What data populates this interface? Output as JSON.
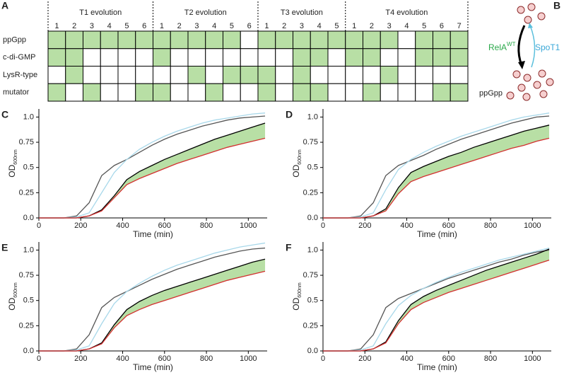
{
  "panel_a": {
    "label": "A",
    "groups": [
      {
        "label": "T1 evolution",
        "columns": [
          "1",
          "2",
          "3",
          "4",
          "5",
          "6"
        ]
      },
      {
        "label": "T2 evolution",
        "columns": [
          "1",
          "2",
          "3",
          "4",
          "5",
          "6"
        ]
      },
      {
        "label": "T3 evolution",
        "columns": [
          "1",
          "2",
          "3",
          "4",
          "5"
        ]
      },
      {
        "label": "T4 evolution",
        "columns": [
          "1",
          "2",
          "3",
          "4",
          "5",
          "6",
          "7"
        ]
      }
    ],
    "fill_color": "#b8dfa5",
    "rows": [
      {
        "label": "ppGpp",
        "cells": [
          true,
          true,
          true,
          true,
          true,
          true,
          true,
          true,
          true,
          true,
          true,
          false,
          true,
          true,
          true,
          true,
          true,
          true,
          true,
          true,
          false,
          true,
          true,
          true
        ]
      },
      {
        "label": "c-di-GMP",
        "cells": [
          true,
          true,
          false,
          false,
          false,
          false,
          true,
          false,
          false,
          false,
          false,
          false,
          false,
          false,
          true,
          true,
          false,
          true,
          true,
          false,
          false,
          true,
          true,
          true
        ]
      },
      {
        "label": "LysR-type",
        "cells": [
          false,
          true,
          false,
          false,
          false,
          false,
          false,
          false,
          true,
          false,
          true,
          true,
          true,
          false,
          true,
          false,
          false,
          false,
          false,
          true,
          false,
          false,
          false,
          false
        ]
      },
      {
        "label": "mutator",
        "cells": [
          true,
          false,
          true,
          false,
          false,
          true,
          true,
          false,
          false,
          true,
          false,
          false,
          true,
          false,
          true,
          true,
          false,
          false,
          true,
          false,
          false,
          false,
          true,
          true
        ]
      }
    ]
  },
  "panel_b": {
    "label": "B",
    "left_arrow_label": "RelA",
    "left_arrow_sup": "WT",
    "right_arrow_label": "SpoT1",
    "product": "ppGpp"
  },
  "chart_data": [
    {
      "type": "line",
      "label": "C",
      "xlabel": "Time (min)",
      "ylabel": "OD",
      "ylabel_sub": "600nm",
      "xlim": [
        0,
        1090
      ],
      "ylim": [
        0,
        1.08
      ],
      "xticks": [
        0,
        200,
        400,
        600,
        800,
        1000
      ],
      "yticks": [
        {
          "value": 0,
          "label": "0.0"
        },
        0.25,
        {
          "value": 0.5,
          "label": "0.5"
        },
        0.75,
        {
          "value": 1,
          "label": "1.0"
        }
      ],
      "x": [
        0,
        60,
        120,
        180,
        240,
        300,
        360,
        420,
        480,
        540,
        600,
        660,
        720,
        780,
        840,
        900,
        960,
        1020,
        1080
      ],
      "fill_between": {
        "series": [
          2,
          3
        ],
        "color": "#b8dfa5"
      },
      "series": [
        {
          "color": "#555555",
          "values": [
            0,
            0,
            0,
            0.02,
            0.15,
            0.42,
            0.52,
            0.58,
            0.65,
            0.72,
            0.78,
            0.83,
            0.87,
            0.91,
            0.94,
            0.97,
            0.99,
            1.0,
            1.01
          ]
        },
        {
          "color": "#a8d8ea",
          "values": [
            0,
            0,
            0,
            0.01,
            0.05,
            0.25,
            0.45,
            0.58,
            0.68,
            0.75,
            0.81,
            0.86,
            0.9,
            0.94,
            0.97,
            0.99,
            1.01,
            1.03,
            1.04
          ]
        },
        {
          "color": "#000000",
          "values": [
            0,
            0,
            0,
            0,
            0.02,
            0.08,
            0.22,
            0.38,
            0.46,
            0.52,
            0.58,
            0.63,
            0.68,
            0.73,
            0.78,
            0.82,
            0.86,
            0.9,
            0.94
          ]
        },
        {
          "color": "#d32f2f",
          "values": [
            0,
            0,
            0,
            0,
            0.02,
            0.07,
            0.2,
            0.33,
            0.39,
            0.44,
            0.49,
            0.54,
            0.58,
            0.62,
            0.66,
            0.7,
            0.73,
            0.76,
            0.79
          ]
        }
      ]
    },
    {
      "type": "line",
      "label": "D",
      "xlabel": "Time (min)",
      "ylabel": "OD",
      "ylabel_sub": "600nm",
      "xlim": [
        0,
        1090
      ],
      "ylim": [
        0,
        1.08
      ],
      "xticks": [
        0,
        200,
        400,
        600,
        800,
        1000
      ],
      "yticks": [
        {
          "value": 0,
          "label": "0.0"
        },
        0.25,
        {
          "value": 0.5,
          "label": "0.5"
        },
        0.75,
        {
          "value": 1,
          "label": "1.0"
        }
      ],
      "x": [
        0,
        60,
        120,
        180,
        240,
        300,
        360,
        420,
        480,
        540,
        600,
        660,
        720,
        780,
        840,
        900,
        960,
        1020,
        1080
      ],
      "fill_between": {
        "series": [
          2,
          3
        ],
        "color": "#b8dfa5"
      },
      "series": [
        {
          "color": "#555555",
          "values": [
            0,
            0,
            0,
            0.02,
            0.15,
            0.42,
            0.52,
            0.57,
            0.62,
            0.68,
            0.73,
            0.78,
            0.82,
            0.86,
            0.9,
            0.94,
            0.97,
            1.0,
            1.01
          ]
        },
        {
          "color": "#a8d8ea",
          "values": [
            0,
            0,
            0,
            0.01,
            0.05,
            0.28,
            0.48,
            0.58,
            0.65,
            0.71,
            0.76,
            0.81,
            0.85,
            0.89,
            0.93,
            0.97,
            1.0,
            1.02,
            1.04
          ]
        },
        {
          "color": "#000000",
          "values": [
            0,
            0,
            0,
            0,
            0.02,
            0.09,
            0.3,
            0.45,
            0.51,
            0.56,
            0.61,
            0.65,
            0.7,
            0.74,
            0.78,
            0.82,
            0.86,
            0.89,
            0.92
          ]
        },
        {
          "color": "#d32f2f",
          "values": [
            0,
            0,
            0,
            0,
            0.02,
            0.07,
            0.24,
            0.36,
            0.41,
            0.45,
            0.49,
            0.53,
            0.57,
            0.61,
            0.65,
            0.69,
            0.72,
            0.76,
            0.79
          ]
        }
      ]
    },
    {
      "type": "line",
      "label": "E",
      "xlabel": "Time (min)",
      "ylabel": "OD",
      "ylabel_sub": "600nm",
      "xlim": [
        0,
        1090
      ],
      "ylim": [
        0,
        1.08
      ],
      "xticks": [
        0,
        200,
        400,
        600,
        800,
        1000
      ],
      "yticks": [
        {
          "value": 0,
          "label": "0.0"
        },
        0.25,
        {
          "value": 0.5,
          "label": "0.5"
        },
        0.75,
        {
          "value": 1,
          "label": "1.0"
        }
      ],
      "x": [
        0,
        60,
        120,
        180,
        240,
        300,
        360,
        420,
        480,
        540,
        600,
        660,
        720,
        780,
        840,
        900,
        960,
        1020,
        1080
      ],
      "fill_between": {
        "series": [
          2,
          3
        ],
        "color": "#b8dfa5"
      },
      "series": [
        {
          "color": "#555555",
          "values": [
            0,
            0,
            0,
            0.02,
            0.16,
            0.43,
            0.53,
            0.59,
            0.65,
            0.71,
            0.76,
            0.81,
            0.85,
            0.89,
            0.93,
            0.96,
            0.99,
            1.01,
            1.02
          ]
        },
        {
          "color": "#a8d8ea",
          "values": [
            0,
            0,
            0,
            0.01,
            0.05,
            0.27,
            0.47,
            0.59,
            0.67,
            0.74,
            0.8,
            0.85,
            0.89,
            0.93,
            0.97,
            1.0,
            1.03,
            1.05,
            1.07
          ]
        },
        {
          "color": "#000000",
          "values": [
            0,
            0,
            0,
            0,
            0.02,
            0.08,
            0.26,
            0.41,
            0.49,
            0.55,
            0.6,
            0.64,
            0.68,
            0.72,
            0.76,
            0.8,
            0.84,
            0.88,
            0.91
          ]
        },
        {
          "color": "#d32f2f",
          "values": [
            0,
            0,
            0,
            0,
            0.02,
            0.07,
            0.23,
            0.35,
            0.41,
            0.46,
            0.5,
            0.54,
            0.58,
            0.62,
            0.66,
            0.7,
            0.73,
            0.76,
            0.79
          ]
        }
      ]
    },
    {
      "type": "line",
      "label": "F",
      "xlabel": "Time (min)",
      "ylabel": "OD",
      "ylabel_sub": "600nm",
      "xlim": [
        0,
        1090
      ],
      "ylim": [
        0,
        1.08
      ],
      "xticks": [
        0,
        200,
        400,
        600,
        800,
        1000
      ],
      "yticks": [
        {
          "value": 0,
          "label": "0.0"
        },
        0.25,
        {
          "value": 0.5,
          "label": "0.5"
        },
        0.75,
        {
          "value": 1,
          "label": "1.0"
        }
      ],
      "x": [
        0,
        60,
        120,
        180,
        240,
        300,
        360,
        420,
        480,
        540,
        600,
        660,
        720,
        780,
        840,
        900,
        960,
        1020,
        1080
      ],
      "fill_between": {
        "series": [
          2,
          3
        ],
        "color": "#b8dfa5"
      },
      "series": [
        {
          "color": "#555555",
          "values": [
            0,
            0,
            0,
            0.02,
            0.16,
            0.43,
            0.52,
            0.57,
            0.62,
            0.67,
            0.72,
            0.76,
            0.8,
            0.84,
            0.88,
            0.91,
            0.95,
            0.98,
            1.0
          ]
        },
        {
          "color": "#a8d8ea",
          "values": [
            0,
            0,
            0,
            0.01,
            0.05,
            0.27,
            0.45,
            0.55,
            0.62,
            0.68,
            0.73,
            0.78,
            0.82,
            0.86,
            0.9,
            0.93,
            0.96,
            0.99,
            1.02
          ]
        },
        {
          "color": "#000000",
          "values": [
            0,
            0,
            0,
            0,
            0.02,
            0.09,
            0.3,
            0.46,
            0.54,
            0.6,
            0.65,
            0.7,
            0.75,
            0.8,
            0.84,
            0.88,
            0.92,
            0.96,
            1.01
          ]
        },
        {
          "color": "#d32f2f",
          "values": [
            0,
            0,
            0,
            0,
            0.02,
            0.08,
            0.27,
            0.41,
            0.48,
            0.53,
            0.58,
            0.62,
            0.66,
            0.7,
            0.74,
            0.78,
            0.82,
            0.86,
            0.9
          ]
        }
      ]
    }
  ]
}
